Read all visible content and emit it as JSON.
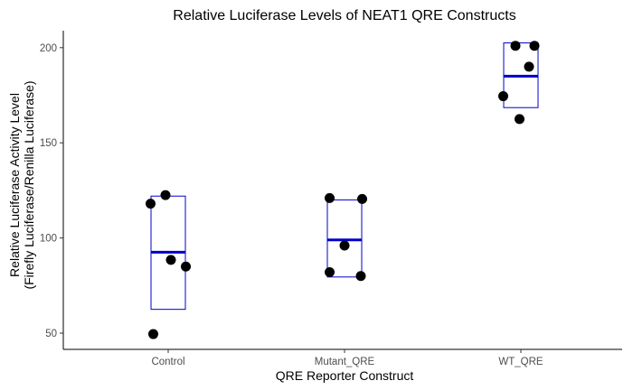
{
  "chart_data": {
    "type": "scatter",
    "subtype": "jitter points with mean line and range box per group",
    "title": "Relative Luciferase Levels of NEAT1 QRE Constructs",
    "xlabel": "QRE Reporter Construct",
    "ylabel_line1": "Relative Luciferase Activity Level",
    "ylabel_line2": "(Firefly Luciferase/Renilla Luciferase)",
    "categories": [
      "Control",
      "Mutant_QRE",
      "WT_QRE"
    ],
    "ylim": [
      40,
      210
    ],
    "yticks": [
      50,
      100,
      150,
      200
    ],
    "ytick_labels": [
      "50",
      "100",
      "150",
      "200"
    ],
    "grid": false,
    "legend": "none",
    "colors": {
      "points": "#000000",
      "mean_line": "#0000cc",
      "box": "#0000cc",
      "axis": "#000000"
    },
    "groups": [
      {
        "category": "Control",
        "points": [
          {
            "jitter": -0.13,
            "y": 118
          },
          {
            "jitter": -0.02,
            "y": 122.5
          },
          {
            "jitter": 0.02,
            "y": 88.5
          },
          {
            "jitter": 0.13,
            "y": 85
          },
          {
            "jitter": -0.11,
            "y": 49.5
          }
        ],
        "mean": 92.5,
        "box_low": 62.5,
        "box_high": 122
      },
      {
        "category": "Mutant_QRE",
        "points": [
          {
            "jitter": -0.11,
            "y": 121
          },
          {
            "jitter": 0.13,
            "y": 120.5
          },
          {
            "jitter": 0.0,
            "y": 96
          },
          {
            "jitter": -0.11,
            "y": 82
          },
          {
            "jitter": 0.12,
            "y": 80
          }
        ],
        "mean": 99,
        "box_low": 79.5,
        "box_high": 120
      },
      {
        "category": "WT_QRE",
        "points": [
          {
            "jitter": -0.04,
            "y": 201
          },
          {
            "jitter": 0.1,
            "y": 201
          },
          {
            "jitter": 0.06,
            "y": 190
          },
          {
            "jitter": -0.13,
            "y": 174.5
          },
          {
            "jitter": -0.01,
            "y": 162.5
          }
        ],
        "mean": 185,
        "box_low": 168.5,
        "box_high": 202.5
      }
    ]
  }
}
